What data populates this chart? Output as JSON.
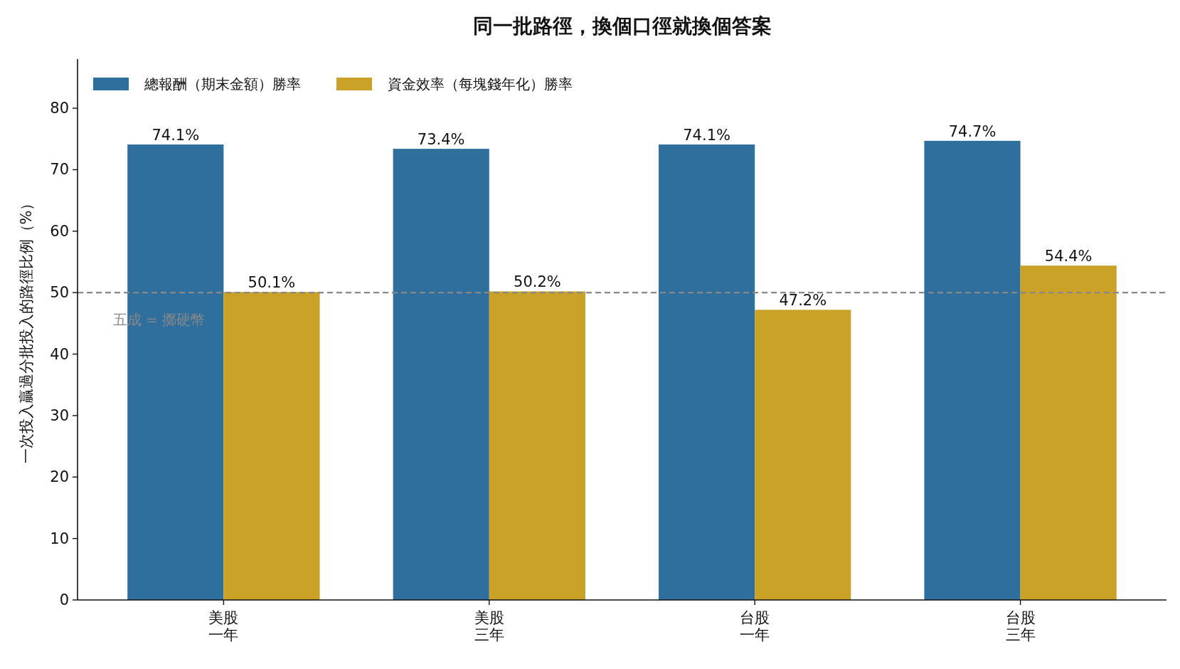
{
  "chart_data": {
    "type": "bar",
    "title": "同一批路徑，換個口徑就換個答案",
    "ylabel": "一次投入贏過分批投入的路徑比例（%）",
    "categories": [
      "美股一年",
      "美股三年",
      "台股一年",
      "台股三年"
    ],
    "series": [
      {
        "name": "總報酬（期末金額）勝率",
        "color": "#2e6f9e",
        "values": [
          74.1,
          73.4,
          74.1,
          74.7
        ],
        "value_labels": [
          "74.1%",
          "73.4%",
          "74.1%",
          "74.7%"
        ]
      },
      {
        "name": "資金效率（每塊錢年化）勝率",
        "color": "#c9a227",
        "values": [
          50.1,
          50.2,
          47.2,
          54.4
        ],
        "value_labels": [
          "50.1%",
          "50.2%",
          "47.2%",
          "54.4%"
        ]
      }
    ],
    "ylim": [
      0,
      88
    ],
    "yticks": [
      0,
      10,
      20,
      30,
      40,
      50,
      60,
      70,
      80
    ],
    "grid": false,
    "legend": "top left",
    "ref_lines": [
      {
        "axis": "y",
        "value": 50,
        "label": "五成 = 擲硬幣",
        "color": "#888888",
        "line_style": "dashed"
      }
    ]
  }
}
